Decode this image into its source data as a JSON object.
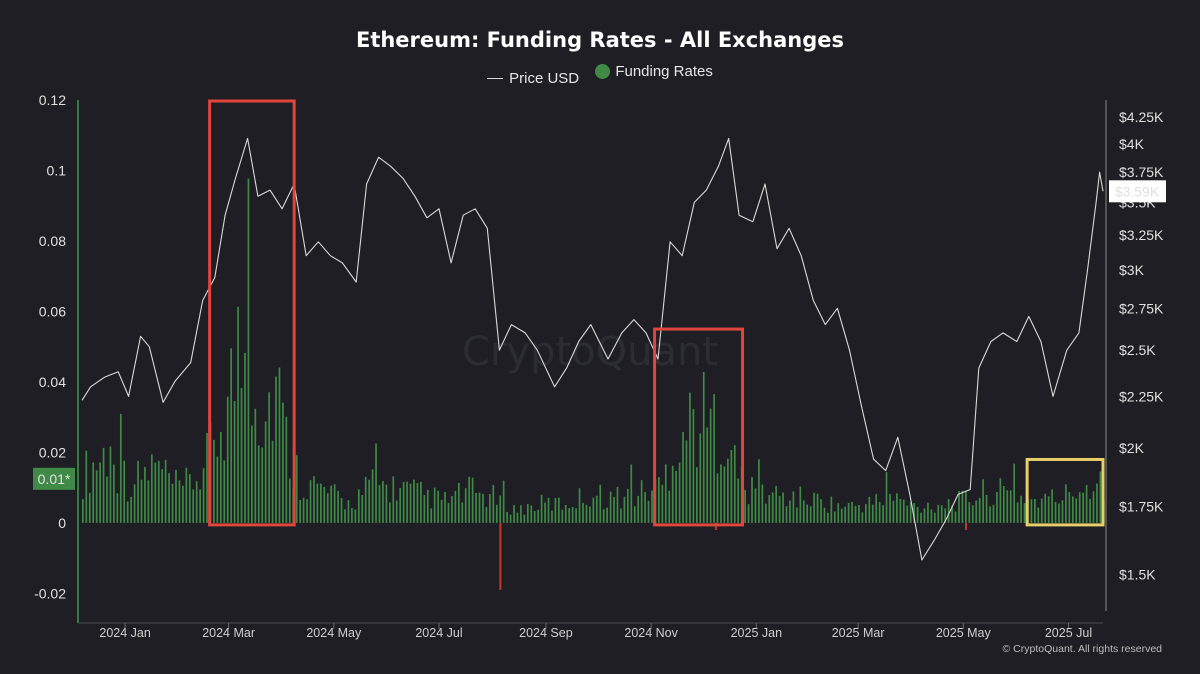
{
  "chart_data": {
    "type": "bar",
    "title": "Ethereum: Funding Rates - All Exchanges",
    "legend": [
      {
        "name": "Price USD",
        "kind": "line",
        "color": "#d9d9d9"
      },
      {
        "name": "Funding Rates",
        "kind": "bar",
        "color": "#3f8a46"
      }
    ],
    "legend_position": "top-center",
    "y_left": {
      "ticks": [
        {
          "label": "0.12",
          "value": 0.12
        },
        {
          "label": "0.1",
          "value": 0.1
        },
        {
          "label": "0.08",
          "value": 0.08
        },
        {
          "label": "0.06",
          "value": 0.06
        },
        {
          "label": "0.04",
          "value": 0.04
        },
        {
          "label": "0.02",
          "value": 0.02
        },
        {
          "label": "0",
          "value": 0
        },
        {
          "label": "-0.02",
          "value": -0.02
        }
      ],
      "range": [
        -0.025,
        0.12
      ],
      "marker": {
        "label": "0.01*",
        "value": 0.0125
      }
    },
    "y_right": {
      "ticks": [
        {
          "label": "$4.25K",
          "value": 4250
        },
        {
          "label": "$4K",
          "value": 4000
        },
        {
          "label": "$3.75K",
          "value": 3750
        },
        {
          "label": "$3.5K",
          "value": 3500
        },
        {
          "label": "$3.25K",
          "value": 3250
        },
        {
          "label": "$3K",
          "value": 3000
        },
        {
          "label": "$2.75K",
          "value": 2750
        },
        {
          "label": "$2.5K",
          "value": 2500
        },
        {
          "label": "$2.25K",
          "value": 2250
        },
        {
          "label": "$2K",
          "value": 2000
        },
        {
          "label": "$1.75K",
          "value": 1750
        },
        {
          "label": "$1.5K",
          "value": 1500
        }
      ],
      "scale": "log",
      "marker": {
        "label": "$3.59K",
        "value": 3590
      }
    },
    "x_axis": {
      "range": [
        "2023-12-07",
        "2025-07-21"
      ],
      "ticks": [
        {
          "label": "2024 Jan",
          "date": "2024-01-01"
        },
        {
          "label": "2024 Mar",
          "date": "2024-03-01"
        },
        {
          "label": "2024 May",
          "date": "2024-05-01"
        },
        {
          "label": "2024 Jul",
          "date": "2024-07-01"
        },
        {
          "label": "2024 Sep",
          "date": "2024-09-01"
        },
        {
          "label": "2024 Nov",
          "date": "2024-11-01"
        },
        {
          "label": "2025 Jan",
          "date": "2025-01-01"
        },
        {
          "label": "2025 Mar",
          "date": "2025-03-01"
        },
        {
          "label": "2025 May",
          "date": "2025-05-01"
        },
        {
          "label": "2025 Jul",
          "date": "2025-07-01"
        }
      ]
    },
    "grid": false,
    "price_series": {
      "name": "Price USD",
      "points": [
        [
          "2023-12-07",
          2230
        ],
        [
          "2023-12-12",
          2300
        ],
        [
          "2023-12-20",
          2350
        ],
        [
          "2023-12-28",
          2380
        ],
        [
          "2024-01-03",
          2250
        ],
        [
          "2024-01-10",
          2580
        ],
        [
          "2024-01-15",
          2520
        ],
        [
          "2024-01-23",
          2220
        ],
        [
          "2024-01-30",
          2330
        ],
        [
          "2024-02-08",
          2430
        ],
        [
          "2024-02-15",
          2800
        ],
        [
          "2024-02-22",
          2950
        ],
        [
          "2024-02-28",
          3400
        ],
        [
          "2024-03-05",
          3700
        ],
        [
          "2024-03-12",
          4050
        ],
        [
          "2024-03-18",
          3550
        ],
        [
          "2024-03-25",
          3600
        ],
        [
          "2024-04-01",
          3450
        ],
        [
          "2024-04-08",
          3650
        ],
        [
          "2024-04-15",
          3100
        ],
        [
          "2024-04-22",
          3200
        ],
        [
          "2024-04-29",
          3100
        ],
        [
          "2024-05-06",
          3050
        ],
        [
          "2024-05-14",
          2920
        ],
        [
          "2024-05-20",
          3650
        ],
        [
          "2024-05-27",
          3880
        ],
        [
          "2024-06-03",
          3800
        ],
        [
          "2024-06-10",
          3700
        ],
        [
          "2024-06-17",
          3550
        ],
        [
          "2024-06-24",
          3380
        ],
        [
          "2024-07-01",
          3450
        ],
        [
          "2024-07-08",
          3050
        ],
        [
          "2024-07-15",
          3400
        ],
        [
          "2024-07-22",
          3450
        ],
        [
          "2024-07-29",
          3300
        ],
        [
          "2024-08-05",
          2500
        ],
        [
          "2024-08-12",
          2650
        ],
        [
          "2024-08-20",
          2600
        ],
        [
          "2024-08-27",
          2500
        ],
        [
          "2024-09-06",
          2300
        ],
        [
          "2024-09-13",
          2400
        ],
        [
          "2024-09-20",
          2550
        ],
        [
          "2024-09-27",
          2650
        ],
        [
          "2024-10-07",
          2450
        ],
        [
          "2024-10-15",
          2600
        ],
        [
          "2024-10-22",
          2680
        ],
        [
          "2024-10-29",
          2600
        ],
        [
          "2024-11-05",
          2450
        ],
        [
          "2024-11-12",
          3200
        ],
        [
          "2024-11-19",
          3100
        ],
        [
          "2024-11-26",
          3500
        ],
        [
          "2024-12-03",
          3600
        ],
        [
          "2024-12-10",
          3800
        ],
        [
          "2024-12-16",
          4050
        ],
        [
          "2024-12-22",
          3400
        ],
        [
          "2024-12-30",
          3350
        ],
        [
          "2025-01-06",
          3650
        ],
        [
          "2025-01-13",
          3150
        ],
        [
          "2025-01-20",
          3300
        ],
        [
          "2025-01-27",
          3100
        ],
        [
          "2025-02-03",
          2800
        ],
        [
          "2025-02-10",
          2650
        ],
        [
          "2025-02-17",
          2750
        ],
        [
          "2025-02-24",
          2500
        ],
        [
          "2025-03-03",
          2200
        ],
        [
          "2025-03-10",
          1950
        ],
        [
          "2025-03-17",
          1900
        ],
        [
          "2025-03-24",
          2050
        ],
        [
          "2025-03-31",
          1800
        ],
        [
          "2025-04-07",
          1550
        ],
        [
          "2025-04-14",
          1620
        ],
        [
          "2025-04-21",
          1700
        ],
        [
          "2025-04-28",
          1800
        ],
        [
          "2025-05-05",
          1820
        ],
        [
          "2025-05-10",
          2400
        ],
        [
          "2025-05-17",
          2550
        ],
        [
          "2025-05-24",
          2600
        ],
        [
          "2025-06-01",
          2550
        ],
        [
          "2025-06-08",
          2700
        ],
        [
          "2025-06-15",
          2550
        ],
        [
          "2025-06-22",
          2250
        ],
        [
          "2025-06-30",
          2500
        ],
        [
          "2025-07-07",
          2600
        ],
        [
          "2025-07-12",
          3000
        ],
        [
          "2025-07-17",
          3500
        ],
        [
          "2025-07-19",
          3750
        ],
        [
          "2025-07-21",
          3590
        ]
      ]
    },
    "funding_series": {
      "name": "Funding Rates",
      "points": [
        [
          "2023-12-07",
          0.015
        ],
        [
          "2023-12-21",
          0.022
        ],
        [
          "2024-01-04",
          0.012
        ],
        [
          "2024-01-18",
          0.018
        ],
        [
          "2024-02-01",
          0.01
        ],
        [
          "2024-02-15",
          0.016
        ],
        [
          "2024-02-29",
          0.038
        ],
        [
          "2024-03-07",
          0.055
        ],
        [
          "2024-03-14",
          0.05
        ],
        [
          "2024-03-21",
          0.032
        ],
        [
          "2024-03-28",
          0.045
        ],
        [
          "2024-04-04",
          0.022
        ],
        [
          "2024-04-11",
          0.014
        ],
        [
          "2024-04-25",
          0.01
        ],
        [
          "2024-05-09",
          0.006
        ],
        [
          "2024-05-23",
          0.012
        ],
        [
          "2024-06-06",
          0.011
        ],
        [
          "2024-06-20",
          0.009
        ],
        [
          "2024-07-04",
          0.007
        ],
        [
          "2024-07-18",
          0.01
        ],
        [
          "2024-08-01",
          0.008
        ],
        [
          "2024-08-15",
          0.004
        ],
        [
          "2024-08-29",
          0.006
        ],
        [
          "2024-09-12",
          0.006
        ],
        [
          "2024-09-26",
          0.009
        ],
        [
          "2024-10-10",
          0.008
        ],
        [
          "2024-10-24",
          0.009
        ],
        [
          "2024-11-07",
          0.012
        ],
        [
          "2024-11-14",
          0.025
        ],
        [
          "2024-11-21",
          0.03
        ],
        [
          "2024-11-28",
          0.034
        ],
        [
          "2024-12-05",
          0.03
        ],
        [
          "2024-12-12",
          0.032
        ],
        [
          "2024-12-19",
          0.018
        ],
        [
          "2024-12-26",
          0.01
        ],
        [
          "2025-01-09",
          0.009
        ],
        [
          "2025-01-23",
          0.008
        ],
        [
          "2025-02-06",
          0.007
        ],
        [
          "2025-02-20",
          0.005
        ],
        [
          "2025-03-06",
          0.006
        ],
        [
          "2025-03-20",
          0.008
        ],
        [
          "2025-04-03",
          0.005
        ],
        [
          "2025-04-17",
          0.006
        ],
        [
          "2025-05-01",
          0.007
        ],
        [
          "2025-05-15",
          0.01
        ],
        [
          "2025-05-29",
          0.009
        ],
        [
          "2025-06-12",
          0.007
        ],
        [
          "2025-06-26",
          0.008
        ],
        [
          "2025-07-10",
          0.012
        ],
        [
          "2025-07-21",
          0.014
        ]
      ]
    },
    "highlights": [
      {
        "from": "2024-02-19",
        "to": "2024-04-08",
        "y_from": 0,
        "y_to": 0.125,
        "color": "#e0463c"
      },
      {
        "from": "2024-11-03",
        "to": "2024-12-24",
        "y_from": 0,
        "y_to": 0.055,
        "color": "#e0463c"
      },
      {
        "from": "2025-06-07",
        "to": "2025-07-21",
        "y_from": 0,
        "y_to": 0.018,
        "color": "#e8cf6a"
      }
    ],
    "watermark": "CryptoQuant",
    "copyright": "© CryptoQuant. All rights reserved"
  },
  "colors": {
    "background": "#1e1e24",
    "positive_bar": "#3f8a46",
    "negative_bar": "#c0392b",
    "price_line": "#d9d9d9",
    "axis": "#3a9a47"
  }
}
